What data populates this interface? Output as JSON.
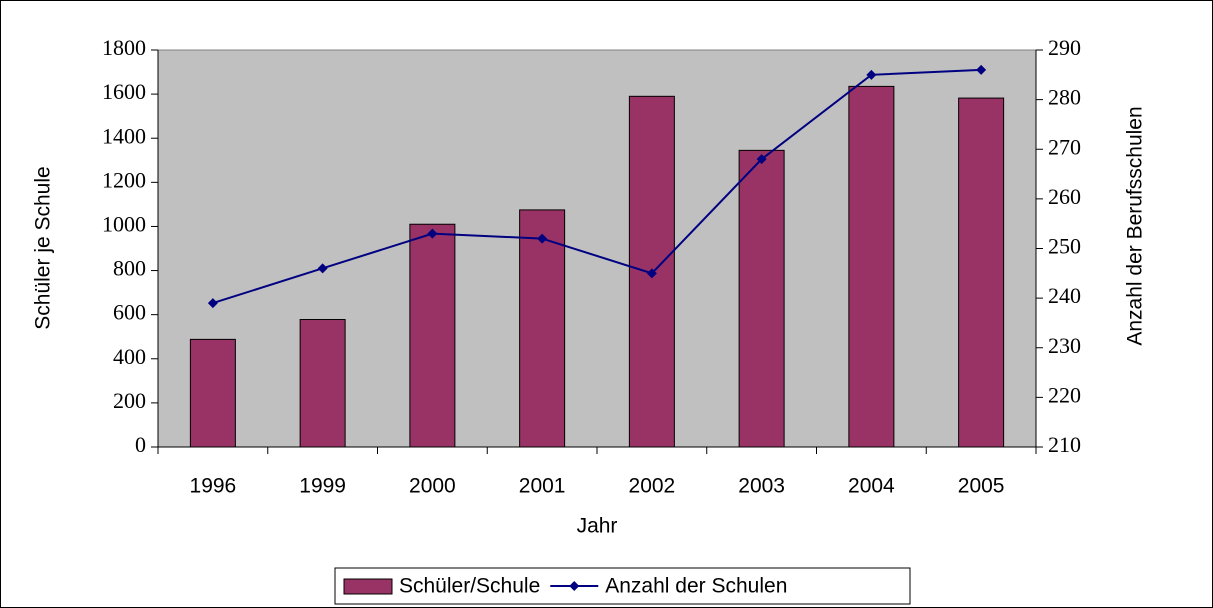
{
  "chart_data": {
    "type": "bar",
    "xlabel": "Jahr",
    "ylabel": "Schüler je Schule",
    "y2label": "Anzahl der Berufsschulen",
    "categories": [
      "1996",
      "1999",
      "2000",
      "2001",
      "2002",
      "2003",
      "2004",
      "2005"
    ],
    "series": [
      {
        "name": "Schüler/Schule",
        "type": "bar",
        "color": "#993366",
        "values": [
          488,
          578,
          1010,
          1075,
          1590,
          1345,
          1635,
          1582
        ]
      },
      {
        "name": "Anzahl der Schulen",
        "type": "line",
        "axis": "y2",
        "color": "#000080",
        "values": [
          239,
          246,
          253,
          252,
          245,
          268,
          285,
          286
        ]
      }
    ],
    "ylim": [
      0,
      1800
    ],
    "yticks": [
      0,
      200,
      400,
      600,
      800,
      1000,
      1200,
      1400,
      1600,
      1800
    ],
    "y2lim": [
      210,
      290
    ],
    "y2ticks": [
      210,
      220,
      230,
      240,
      250,
      260,
      270,
      280,
      290
    ],
    "plot_background": "#c0c0c0",
    "grid": false,
    "legend": "bottom"
  }
}
